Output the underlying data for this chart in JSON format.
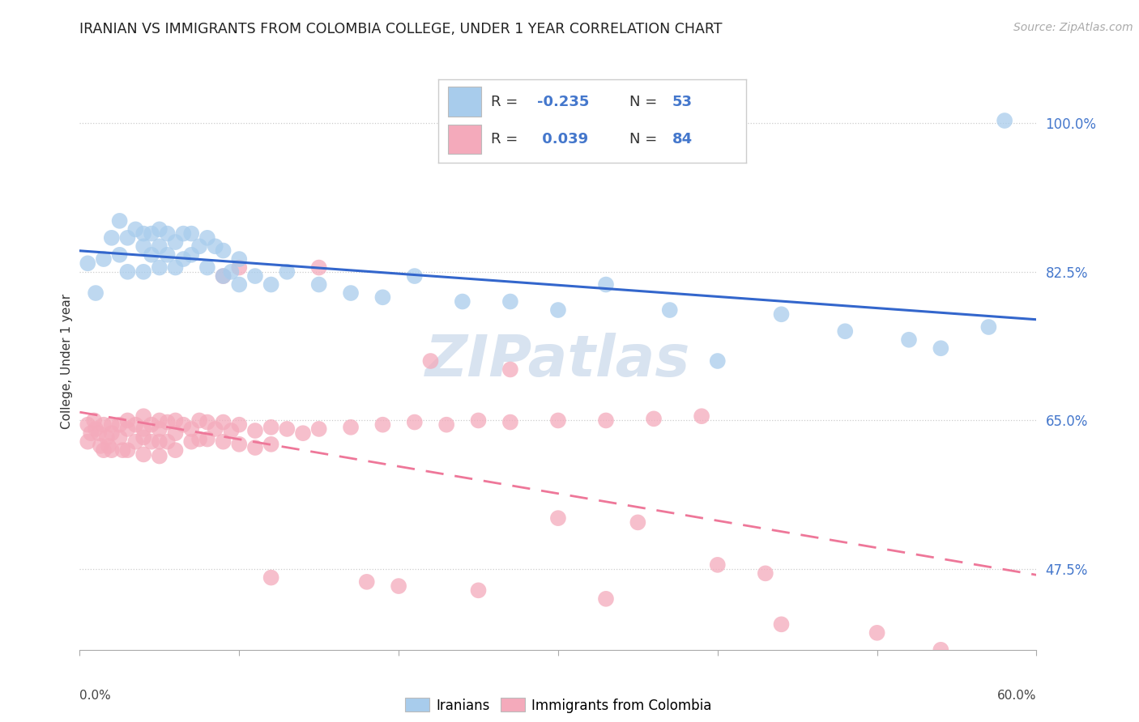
{
  "title": "IRANIAN VS IMMIGRANTS FROM COLOMBIA COLLEGE, UNDER 1 YEAR CORRELATION CHART",
  "source": "Source: ZipAtlas.com",
  "ylabel": "College, Under 1 year",
  "ytick_vals": [
    0.475,
    0.65,
    0.825,
    1.0
  ],
  "ytick_labels": [
    "47.5%",
    "65.0%",
    "82.5%",
    "100.0%"
  ],
  "xrange": [
    0.0,
    0.6
  ],
  "yrange": [
    0.38,
    1.06
  ],
  "blue_color": "#A8CCEC",
  "pink_color": "#F4AABB",
  "blue_line_color": "#3366CC",
  "pink_line_color": "#EE7799",
  "watermark": "ZIPatlas",
  "blue_scatter_x": [
    0.005,
    0.01,
    0.015,
    0.02,
    0.025,
    0.025,
    0.03,
    0.03,
    0.035,
    0.04,
    0.04,
    0.04,
    0.045,
    0.045,
    0.05,
    0.05,
    0.05,
    0.055,
    0.055,
    0.06,
    0.06,
    0.065,
    0.065,
    0.07,
    0.07,
    0.075,
    0.08,
    0.08,
    0.085,
    0.09,
    0.09,
    0.095,
    0.1,
    0.1,
    0.11,
    0.12,
    0.13,
    0.15,
    0.17,
    0.19,
    0.21,
    0.24,
    0.27,
    0.3,
    0.33,
    0.37,
    0.4,
    0.44,
    0.48,
    0.52,
    0.54,
    0.57,
    0.58
  ],
  "blue_scatter_y": [
    0.835,
    0.8,
    0.84,
    0.865,
    0.885,
    0.845,
    0.865,
    0.825,
    0.875,
    0.87,
    0.855,
    0.825,
    0.87,
    0.845,
    0.875,
    0.855,
    0.83,
    0.87,
    0.845,
    0.86,
    0.83,
    0.87,
    0.84,
    0.87,
    0.845,
    0.855,
    0.865,
    0.83,
    0.855,
    0.85,
    0.82,
    0.825,
    0.84,
    0.81,
    0.82,
    0.81,
    0.825,
    0.81,
    0.8,
    0.795,
    0.82,
    0.79,
    0.79,
    0.78,
    0.81,
    0.78,
    0.72,
    0.775,
    0.755,
    0.745,
    0.735,
    0.76,
    1.003
  ],
  "pink_scatter_x": [
    0.005,
    0.005,
    0.007,
    0.009,
    0.01,
    0.012,
    0.013,
    0.015,
    0.015,
    0.017,
    0.018,
    0.02,
    0.02,
    0.02,
    0.025,
    0.025,
    0.027,
    0.03,
    0.03,
    0.03,
    0.035,
    0.035,
    0.04,
    0.04,
    0.04,
    0.04,
    0.045,
    0.045,
    0.05,
    0.05,
    0.05,
    0.05,
    0.055,
    0.055,
    0.06,
    0.06,
    0.06,
    0.065,
    0.07,
    0.07,
    0.075,
    0.075,
    0.08,
    0.08,
    0.085,
    0.09,
    0.09,
    0.095,
    0.1,
    0.1,
    0.11,
    0.11,
    0.12,
    0.12,
    0.13,
    0.14,
    0.15,
    0.17,
    0.19,
    0.21,
    0.23,
    0.25,
    0.27,
    0.3,
    0.33,
    0.36,
    0.39,
    0.1,
    0.15,
    0.09,
    0.22,
    0.27,
    0.3,
    0.35,
    0.4,
    0.43,
    0.12,
    0.18,
    0.2,
    0.25,
    0.33,
    0.44,
    0.5,
    0.54
  ],
  "pink_scatter_y": [
    0.645,
    0.625,
    0.635,
    0.65,
    0.64,
    0.635,
    0.62,
    0.645,
    0.615,
    0.63,
    0.62,
    0.645,
    0.635,
    0.615,
    0.645,
    0.63,
    0.615,
    0.65,
    0.64,
    0.615,
    0.645,
    0.625,
    0.655,
    0.64,
    0.63,
    0.61,
    0.645,
    0.625,
    0.65,
    0.64,
    0.625,
    0.608,
    0.648,
    0.625,
    0.65,
    0.635,
    0.615,
    0.645,
    0.64,
    0.625,
    0.65,
    0.628,
    0.648,
    0.628,
    0.64,
    0.648,
    0.625,
    0.638,
    0.645,
    0.622,
    0.638,
    0.618,
    0.642,
    0.622,
    0.64,
    0.635,
    0.64,
    0.642,
    0.645,
    0.648,
    0.645,
    0.65,
    0.648,
    0.65,
    0.65,
    0.652,
    0.655,
    0.83,
    0.83,
    0.82,
    0.72,
    0.71,
    0.535,
    0.53,
    0.48,
    0.47,
    0.465,
    0.46,
    0.455,
    0.45,
    0.44,
    0.41,
    0.4,
    0.38
  ]
}
